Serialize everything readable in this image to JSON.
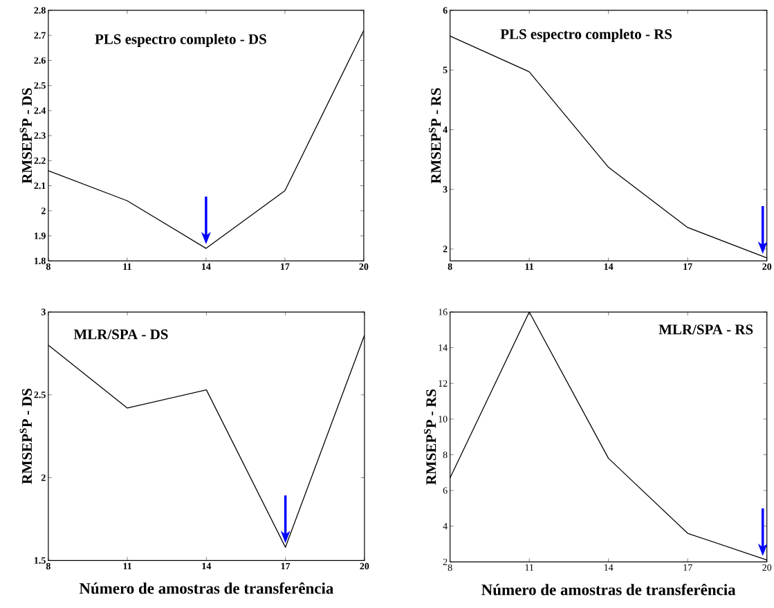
{
  "chart_data": [
    {
      "type": "line",
      "title": "PLS espectro completo - DS",
      "ylabel": "RMSEP$^{S}$P - DS",
      "x": [
        8,
        11,
        14,
        17,
        20
      ],
      "xlim": [
        8,
        20
      ],
      "xticks": [
        8,
        11,
        14,
        17,
        20
      ],
      "ylim": [
        1.8,
        2.8
      ],
      "yticks": [
        1.8,
        1.9,
        2,
        2.1,
        2.2,
        2.3,
        2.4,
        2.5,
        2.6,
        2.7,
        2.8
      ],
      "series": [
        {
          "color": "#000000",
          "values": [
            2.16,
            2.04,
            1.85,
            2.08,
            2.72
          ]
        }
      ]
    },
    {
      "type": "line",
      "title": "PLS espectro completo - RS",
      "ylabel": "RMSEP$^{S}$P - RS",
      "x": [
        8,
        11,
        14,
        17,
        20
      ],
      "xlim": [
        8,
        20
      ],
      "xticks": [
        8,
        11,
        14,
        17,
        20
      ],
      "ylim": [
        1.8,
        6
      ],
      "yticks": [
        2,
        3,
        4,
        5,
        6
      ],
      "series": [
        {
          "color": "#000000",
          "values": [
            5.57,
            4.97,
            3.37,
            2.36,
            1.85
          ]
        }
      ]
    },
    {
      "type": "line",
      "title": "MLR/SPA - DS",
      "xlabel": "Número de amostras de transferência",
      "ylabel": "RMSEP$^{S}$P - DS",
      "x": [
        8,
        11,
        14,
        17,
        20
      ],
      "xlim": [
        8,
        20
      ],
      "xticks": [
        8,
        11,
        14,
        17,
        20
      ],
      "ylim": [
        1.5,
        3
      ],
      "yticks": [
        1.5,
        2,
        2.5,
        3
      ],
      "series": [
        {
          "color": "#000000",
          "values": [
            2.8,
            2.42,
            2.53,
            1.58,
            2.86
          ]
        }
      ]
    },
    {
      "type": "line",
      "title": "MLR/SPA - RS",
      "xlabel": "Número de amostras de transferência",
      "ylabel": "RMSEP$^{S}$P - RS",
      "x": [
        8,
        11,
        14,
        17,
        20
      ],
      "xlim": [
        8,
        20
      ],
      "xticks": [
        8,
        11,
        14,
        17,
        20
      ],
      "ylim": [
        2,
        16
      ],
      "yticks": [
        2,
        4,
        6,
        8,
        10,
        12,
        14,
        16
      ],
      "series": [
        {
          "color": "#000000",
          "values": [
            6.7,
            16,
            7.8,
            3.6,
            2.1
          ]
        }
      ]
    }
  ]
}
